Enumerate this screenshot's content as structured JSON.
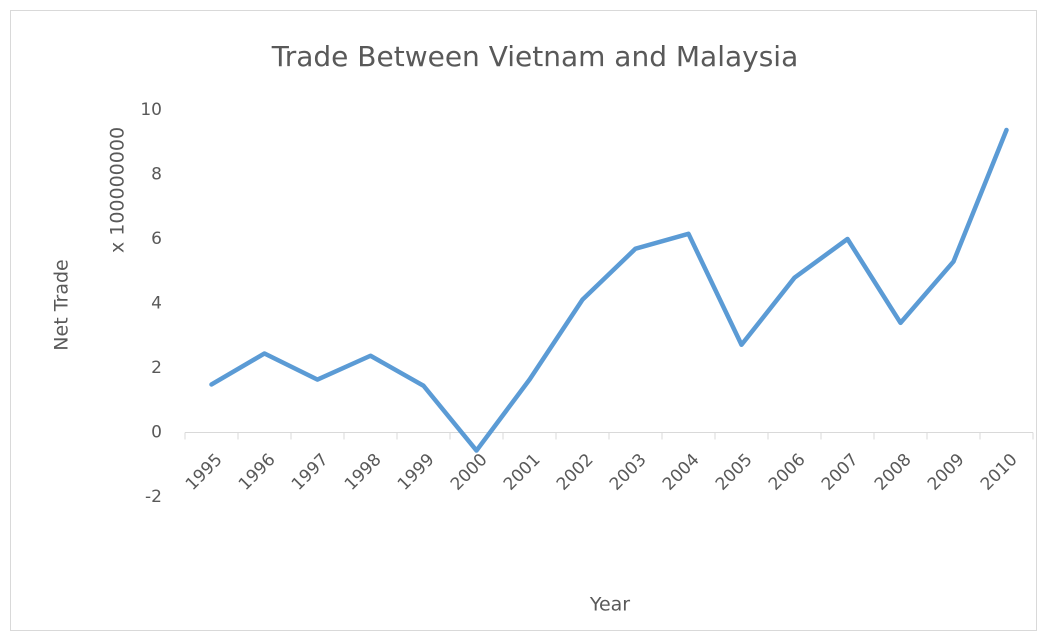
{
  "chart_data": {
    "type": "line",
    "title": "Trade Between Vietnam and Malaysia",
    "x_label": "Year",
    "y_label": "Net Trade",
    "unit_label": "x 100000000",
    "categories": [
      "1995",
      "1996",
      "1997",
      "1998",
      "1999",
      "2000",
      "2001",
      "2002",
      "2003",
      "2004",
      "2005",
      "2006",
      "2007",
      "2008",
      "2009",
      "2010"
    ],
    "series": [
      {
        "name": "Net Trade",
        "color": "#5b9bd5",
        "values": [
          1.49,
          2.45,
          1.64,
          2.38,
          1.45,
          -0.56,
          1.64,
          4.12,
          5.7,
          6.16,
          2.72,
          4.8,
          6.0,
          3.4,
          5.3,
          9.38
        ]
      }
    ],
    "ylim": [
      -2,
      10
    ],
    "yticks": [
      -2,
      0,
      2,
      4,
      6,
      8,
      10
    ],
    "grid": false,
    "legend": false
  }
}
